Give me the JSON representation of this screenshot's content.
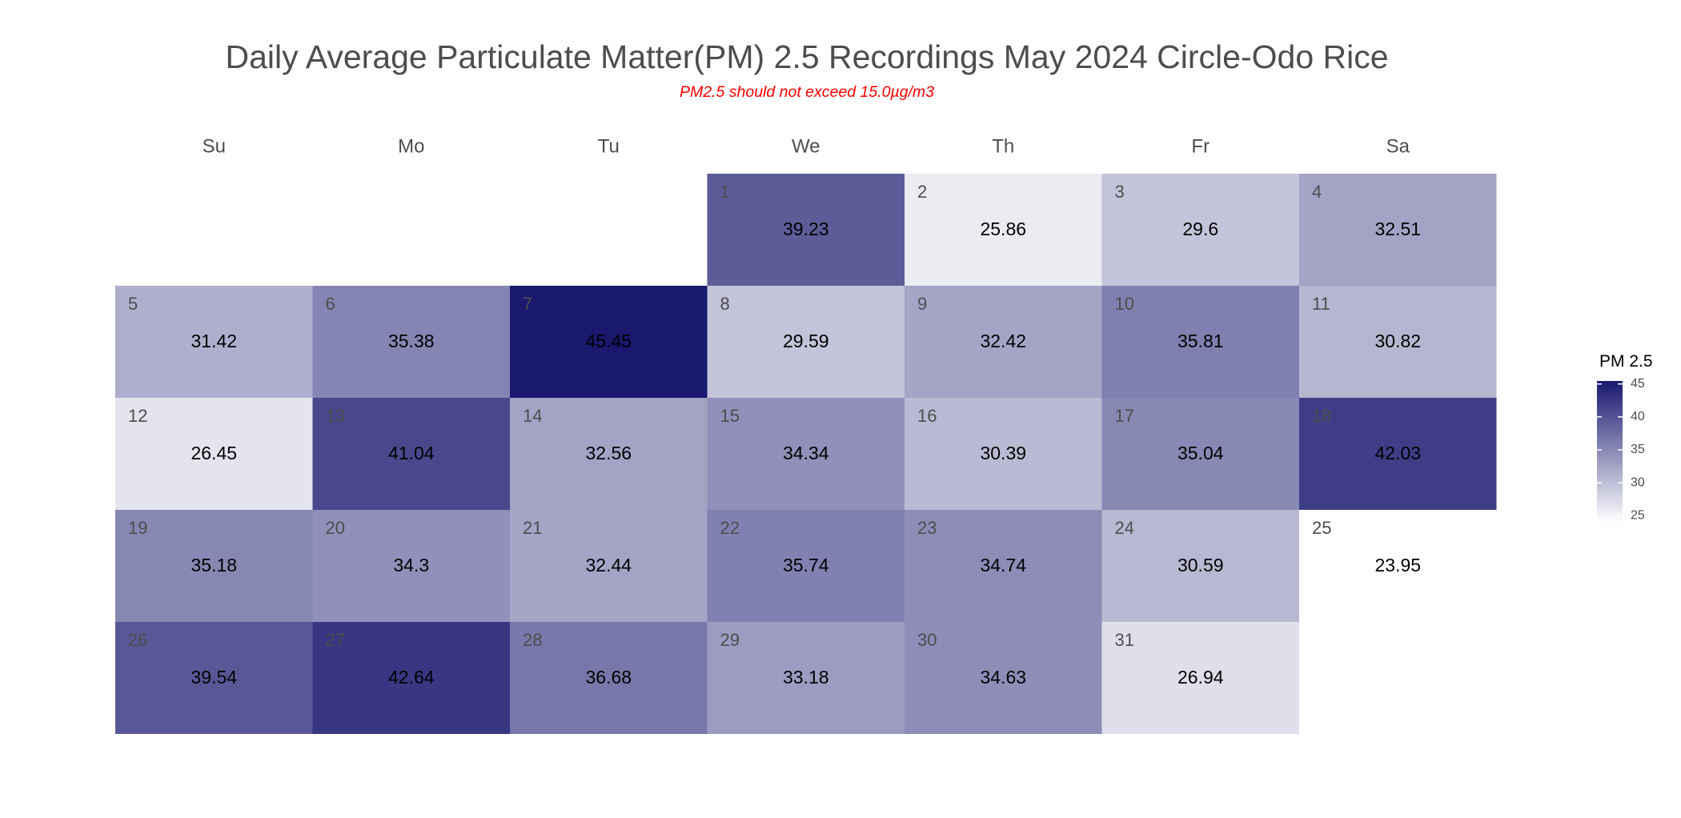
{
  "chart_data": {
    "type": "heatmap",
    "title": "Daily Average Particulate Matter(PM) 2.5 Recordings May 2024 Circle-Odo Rice",
    "subtitle": "PM2.5 should not exceed 15.0µg/m3",
    "weekdays": [
      "Su",
      "Mo",
      "Tu",
      "We",
      "Th",
      "Fr",
      "Sa"
    ],
    "first_weekday_index": 3,
    "days": [
      1,
      2,
      3,
      4,
      5,
      6,
      7,
      8,
      9,
      10,
      11,
      12,
      13,
      14,
      15,
      16,
      17,
      18,
      19,
      20,
      21,
      22,
      23,
      24,
      25,
      26,
      27,
      28,
      29,
      30,
      31
    ],
    "values": [
      39.23,
      25.86,
      29.6,
      32.51,
      31.42,
      35.38,
      45.45,
      29.59,
      32.42,
      35.81,
      30.82,
      26.45,
      41.04,
      32.56,
      34.34,
      30.39,
      35.04,
      42.03,
      35.18,
      34.3,
      32.44,
      35.74,
      34.74,
      30.59,
      23.95,
      39.54,
      42.64,
      36.68,
      33.18,
      34.63,
      26.94
    ],
    "legend": {
      "title": "PM 2.5",
      "ticks": [
        25,
        30,
        35,
        40,
        45
      ],
      "range": [
        23.95,
        45.45
      ],
      "low_color": "#ffffff",
      "high_color": "#191970"
    }
  }
}
